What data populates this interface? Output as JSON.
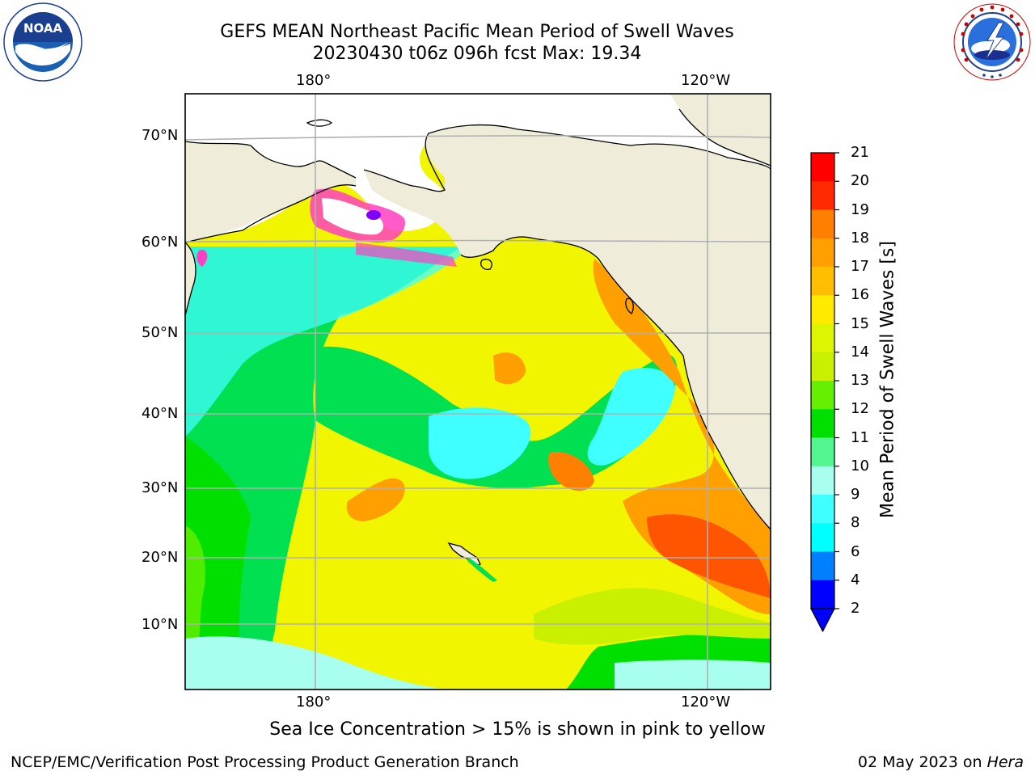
{
  "header": {
    "title_line1": "GEFS MEAN Northeast Pacific Mean Period of Swell Waves",
    "title_line2": "20230430 t06z 096h fcst   Max: 19.34"
  },
  "logos": {
    "left": {
      "icon": "noaa-logo",
      "text": "NOAA",
      "ring_text": "NATIONAL OCEANIC AND ATMOSPHERIC ADMINISTRATION · U.S. DEPARTMENT OF COMMERCE"
    },
    "right": {
      "icon": "nws-logo",
      "ring_text": "NATIONAL WEATHER SERVICE"
    }
  },
  "map": {
    "lon_labels_top": [
      "180°",
      "120°W"
    ],
    "lon_labels_bottom": [
      "180°",
      "120°W"
    ],
    "lat_labels": [
      "70°N",
      "60°N",
      "50°N",
      "40°N",
      "30°N",
      "20°N",
      "10°N"
    ]
  },
  "colorbar": {
    "label": "Mean Period of Swell Waves [s]",
    "ticks": [
      "21",
      "20",
      "19",
      "18",
      "17",
      "16",
      "15",
      "14",
      "13",
      "12",
      "11",
      "10",
      "9",
      "8",
      "6",
      "4",
      "2"
    ],
    "colors": [
      "#ff0000",
      "#ff2a00",
      "#ff5500",
      "#ff8000",
      "#ff9f00",
      "#ffbf00",
      "#ffea00",
      "#f2f500",
      "#ddf500",
      "#c8f000",
      "#64f000",
      "#00e000",
      "#00e050",
      "#52f590",
      "#a8fff0",
      "#40ffff",
      "#00ffff",
      "#00d0ff",
      "#0080ff",
      "#0000ff"
    ]
  },
  "caption": "Sea Ice Concentration > 15% is shown in pink to yellow",
  "footer": {
    "left": "NCEP/EMC/Verification Post Processing Product Generation Branch",
    "date": "02 May 2023 on",
    "host": "Hera"
  }
}
